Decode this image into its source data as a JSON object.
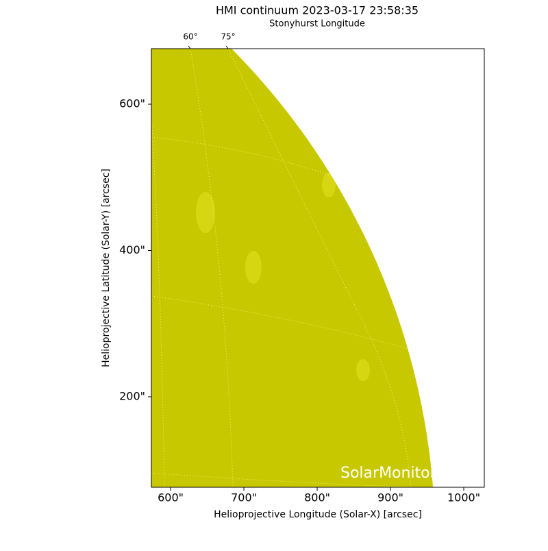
{
  "chart_data": {
    "type": "image",
    "title": "HMI continuum 2023-03-17 23:58:35",
    "top_axis_label": "Stonyhurst Longitude",
    "top_ticks": [
      {
        "value": 60,
        "label": "60°"
      },
      {
        "value": 75,
        "label": "75°"
      }
    ],
    "x_label": "Helioprojective Longitude (Solar-X) [arcsec]",
    "y_label": "Helioprojective Latitude (Solar-Y) [arcsec]",
    "xlim": [
      573.8,
      1028
    ],
    "ylim": [
      76.3,
      675.9
    ],
    "xticks": [
      {
        "value": 600,
        "label": "600\""
      },
      {
        "value": 700,
        "label": "700\""
      },
      {
        "value": 800,
        "label": "800\""
      },
      {
        "value": 900,
        "label": "900\""
      },
      {
        "value": 1000,
        "label": "1000\""
      }
    ],
    "yticks": [
      {
        "value": 200,
        "label": "200\""
      },
      {
        "value": 400,
        "label": "400\""
      },
      {
        "value": 600,
        "label": "600\""
      }
    ],
    "color": "#c8c800",
    "watermark": "SolarMonitor"
  }
}
